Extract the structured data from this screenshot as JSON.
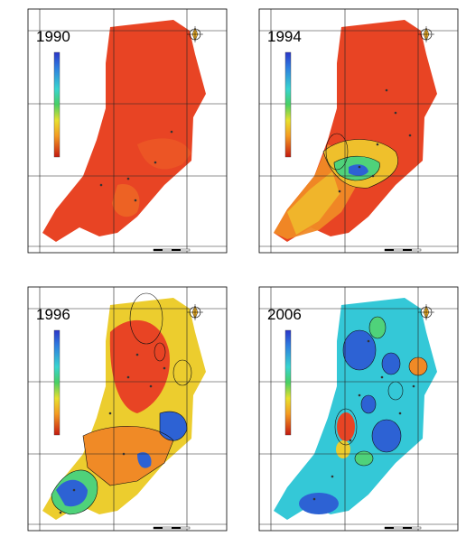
{
  "panels": [
    {
      "year": "1990"
    },
    {
      "year": "1994"
    },
    {
      "year": "1996"
    },
    {
      "year": "2006"
    }
  ],
  "colorbar": {
    "gradient": [
      "#2b36c9",
      "#2e7fe0",
      "#38d5d0",
      "#48cf62",
      "#e8e02e",
      "#f49a22",
      "#e83b1e",
      "#c41a10"
    ]
  },
  "colors": {
    "red_field": "#e84424",
    "orange_field": "#f07a25",
    "yellow_field": "#eccd2e",
    "green_field": "#4fd27a",
    "cyan_field": "#34c8d7",
    "blue_field": "#2d62d4",
    "frame": "#000000",
    "grid": "#222222"
  },
  "compass": {
    "icon": "north-arrow-icon"
  }
}
